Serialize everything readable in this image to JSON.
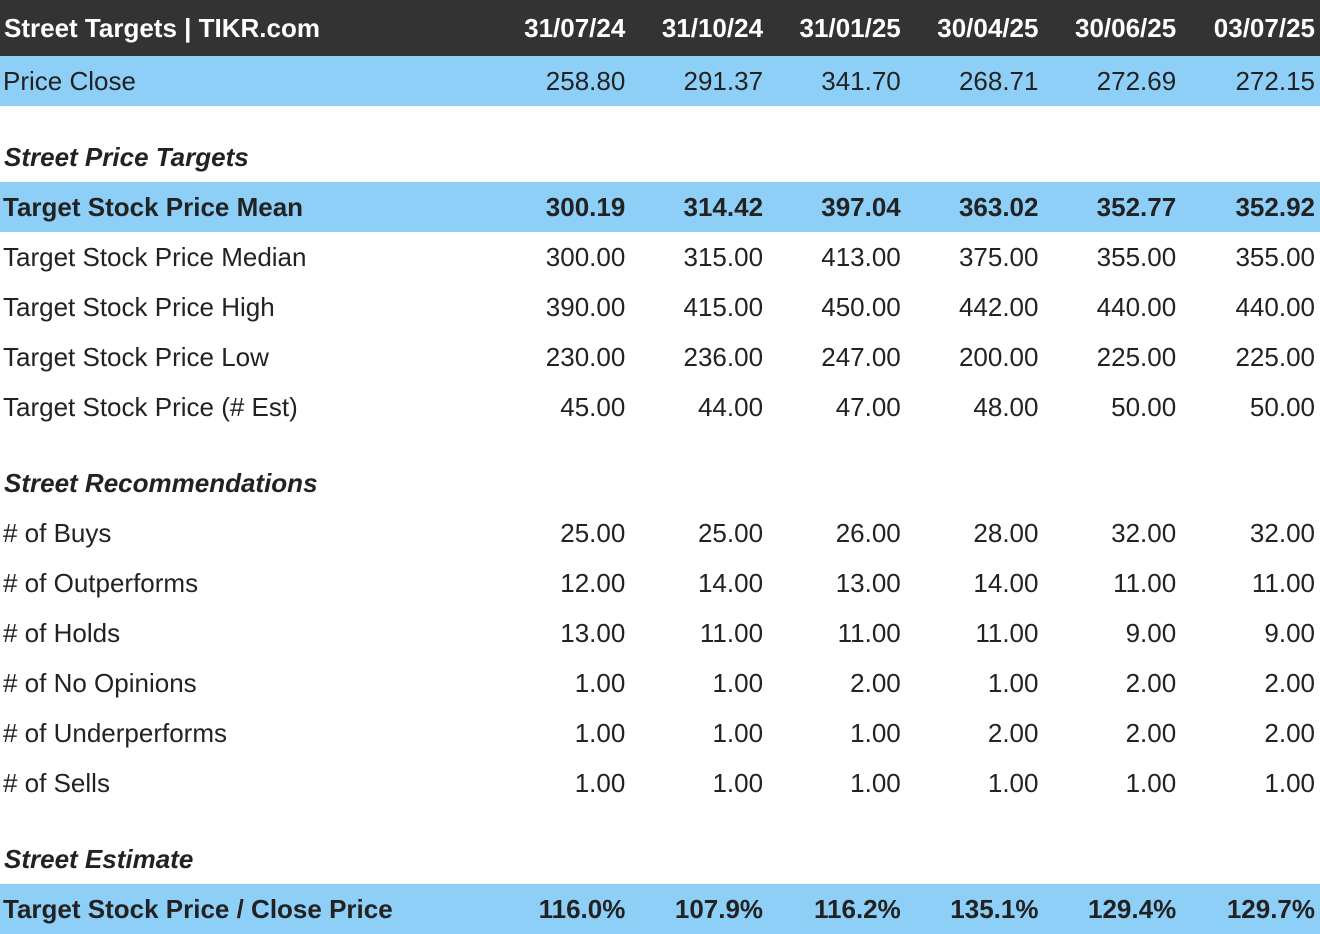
{
  "header": {
    "title": "Street Targets | TIKR.com",
    "dates": [
      "31/07/24",
      "31/10/24",
      "31/01/25",
      "30/04/25",
      "30/06/25",
      "03/07/25"
    ]
  },
  "price_close": {
    "label": "Price Close",
    "values": [
      "258.80",
      "291.37",
      "341.70",
      "268.71",
      "272.69",
      "272.15"
    ]
  },
  "price_targets": {
    "title": "Street Price Targets",
    "rows": [
      {
        "label": "Target Stock Price Mean",
        "values": [
          "300.19",
          "314.42",
          "397.04",
          "363.02",
          "352.77",
          "352.92"
        ]
      },
      {
        "label": "Target Stock Price Median",
        "values": [
          "300.00",
          "315.00",
          "413.00",
          "375.00",
          "355.00",
          "355.00"
        ]
      },
      {
        "label": "Target Stock Price High",
        "values": [
          "390.00",
          "415.00",
          "450.00",
          "442.00",
          "440.00",
          "440.00"
        ]
      },
      {
        "label": "Target Stock Price Low",
        "values": [
          "230.00",
          "236.00",
          "247.00",
          "200.00",
          "225.00",
          "225.00"
        ]
      },
      {
        "label": "Target Stock Price (# Est)",
        "values": [
          "45.00",
          "44.00",
          "47.00",
          "48.00",
          "50.00",
          "50.00"
        ]
      }
    ]
  },
  "recommendations": {
    "title": "Street Recommendations",
    "rows": [
      {
        "label": "# of Buys",
        "values": [
          "25.00",
          "25.00",
          "26.00",
          "28.00",
          "32.00",
          "32.00"
        ]
      },
      {
        "label": "# of Outperforms",
        "values": [
          "12.00",
          "14.00",
          "13.00",
          "14.00",
          "11.00",
          "11.00"
        ]
      },
      {
        "label": "# of Holds",
        "values": [
          "13.00",
          "11.00",
          "11.00",
          "11.00",
          "9.00",
          "9.00"
        ]
      },
      {
        "label": "# of No Opinions",
        "values": [
          "1.00",
          "1.00",
          "2.00",
          "1.00",
          "2.00",
          "2.00"
        ]
      },
      {
        "label": "# of Underperforms",
        "values": [
          "1.00",
          "1.00",
          "1.00",
          "2.00",
          "2.00",
          "2.00"
        ]
      },
      {
        "label": "# of Sells",
        "values": [
          "1.00",
          "1.00",
          "1.00",
          "1.00",
          "1.00",
          "1.00"
        ]
      }
    ]
  },
  "estimate": {
    "title": "Street Estimate",
    "rows": [
      {
        "label": "Target Stock Price / Close Price",
        "values": [
          "116.0%",
          "107.9%",
          "116.2%",
          "135.1%",
          "129.4%",
          "129.7%"
        ]
      }
    ]
  },
  "colors": {
    "header_bg": "#333333",
    "highlight_bg": "#8ecff8"
  }
}
